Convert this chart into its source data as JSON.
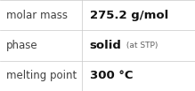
{
  "rows": [
    {
      "label": "molar mass",
      "value_parts": [
        {
          "text": "275.2 g/mol",
          "bold": true,
          "fontsize": 9.5
        }
      ]
    },
    {
      "label": "phase",
      "value_parts": [
        {
          "text": "solid",
          "bold": true,
          "fontsize": 9.5
        },
        {
          "text": " (at STP)",
          "bold": false,
          "fontsize": 6.5
        }
      ]
    },
    {
      "label": "melting point",
      "value_parts": [
        {
          "text": "300 °C",
          "bold": true,
          "fontsize": 9.5
        }
      ]
    }
  ],
  "col_split": 0.42,
  "background_color": "#ffffff",
  "border_color": "#c8c8c8",
  "label_color": "#404040",
  "value_color": "#111111",
  "small_color": "#606060",
  "label_fontsize": 8.5,
  "font_family": "DejaVu Sans",
  "fig_width": 2.19,
  "fig_height": 1.03,
  "dpi": 100
}
